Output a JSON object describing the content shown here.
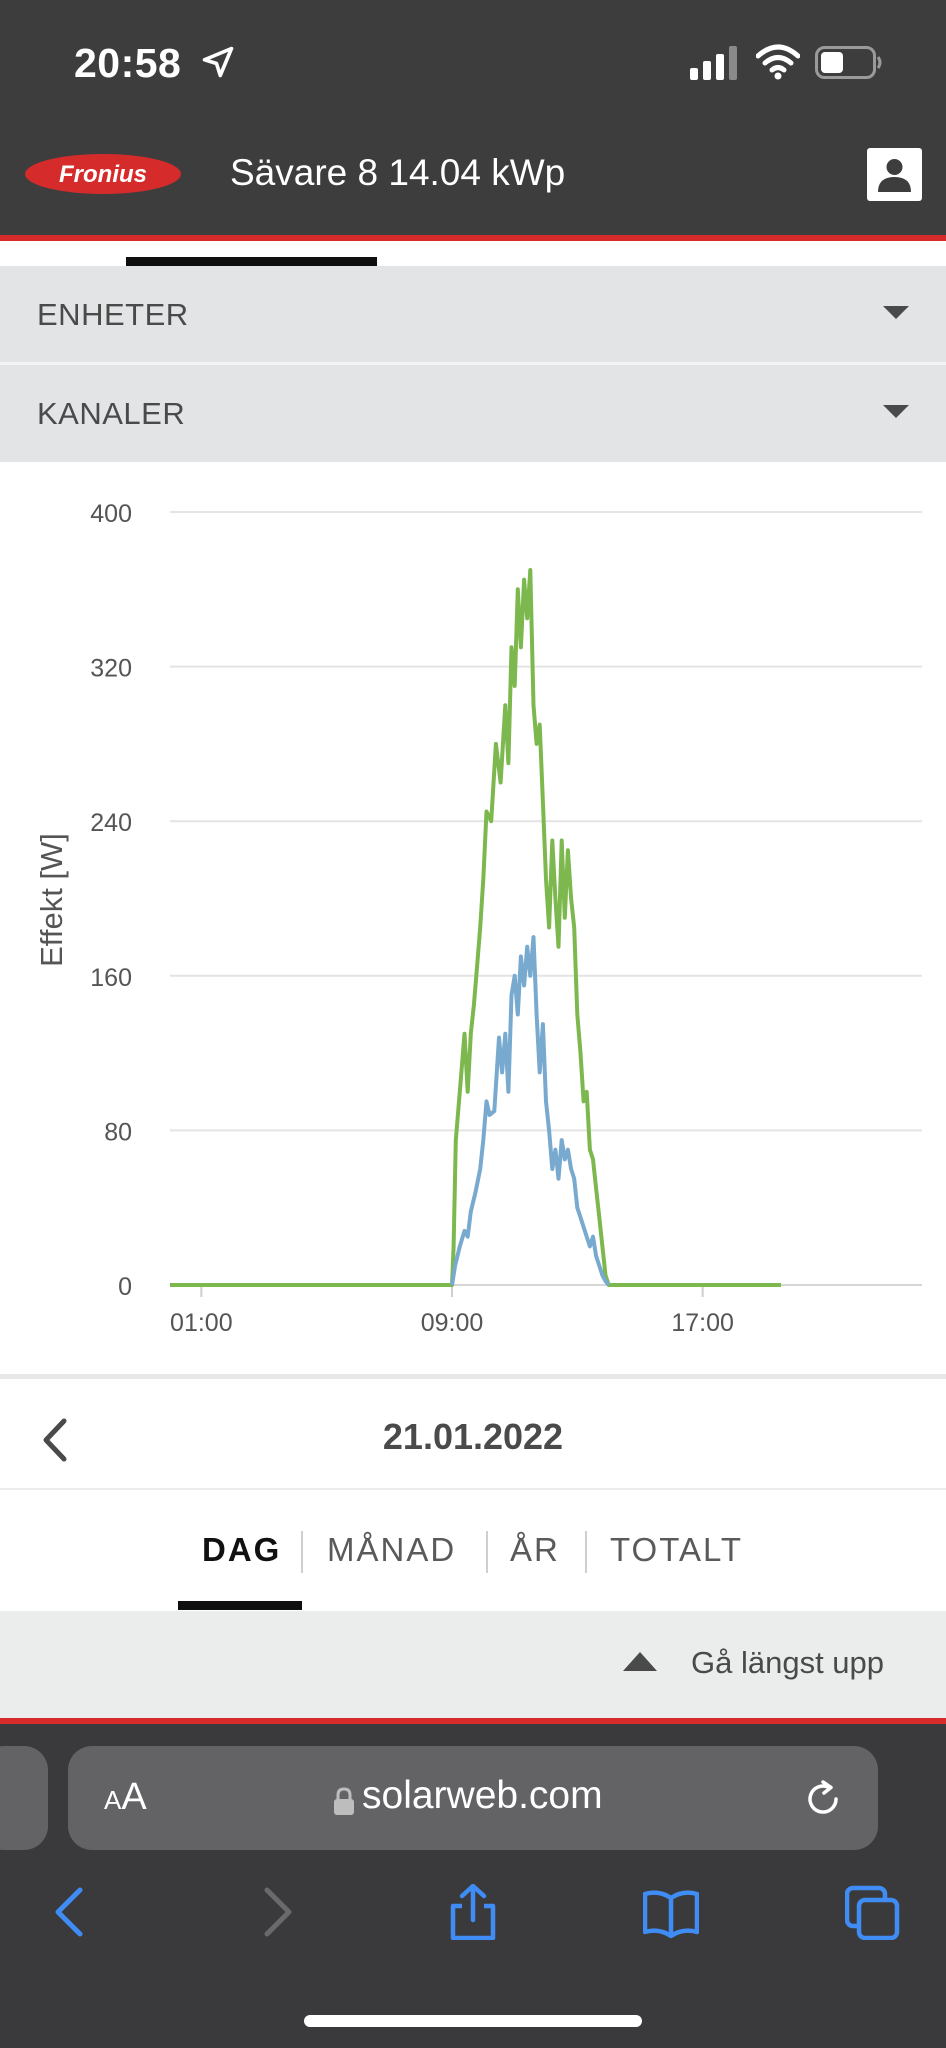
{
  "status_bar": {
    "time": "20:58"
  },
  "header": {
    "logo_text": "Fronius",
    "site_title": "Sävare 8 14.04 kWp"
  },
  "dropdowns": [
    {
      "label": "ENHETER"
    },
    {
      "label": "KANALER"
    }
  ],
  "chart_data": {
    "type": "line",
    "title": "",
    "ylabel": "Effekt [W]",
    "xlabel": "",
    "ylim": [
      0,
      400
    ],
    "yticks": [
      "0",
      "80",
      "160",
      "240",
      "320",
      "400"
    ],
    "xticks": [
      "01:00",
      "09:00",
      "17:00"
    ],
    "x_unit": "hours",
    "grid": true,
    "series": [
      {
        "color": "#7db84f",
        "x": [
          0,
          9.0,
          9.05,
          9.12,
          9.25,
          9.4,
          9.5,
          9.6,
          9.7,
          9.8,
          9.9,
          10.0,
          10.1,
          10.25,
          10.4,
          10.55,
          10.7,
          10.8,
          10.9,
          11.0,
          11.1,
          11.2,
          11.3,
          11.4,
          11.5,
          11.6,
          11.7,
          11.8,
          11.9,
          12.0,
          12.1,
          12.2,
          12.3,
          12.4,
          12.5,
          12.6,
          12.7,
          12.8,
          12.9,
          13.0,
          13.1,
          13.2,
          13.3,
          13.4,
          13.5,
          13.6,
          13.7,
          13.8,
          13.9,
          14.0,
          14.1,
          14.2,
          14.3,
          14.4,
          14.5,
          14.6,
          14.7,
          14.8,
          14.9,
          15.0,
          15.1,
          15.2,
          15.3,
          15.4,
          15.5,
          15.6,
          15.7,
          15.8,
          15.9,
          16.0,
          16.1,
          16.2,
          16.3,
          16.4,
          16.5,
          16.6,
          16.7,
          16.8,
          16.85,
          16.9,
          19.5
        ],
        "values": [
          0,
          0,
          20,
          75,
          100,
          130,
          100,
          130,
          145,
          165,
          185,
          210,
          245,
          240,
          280,
          260,
          300,
          270,
          330,
          310,
          360,
          330,
          365,
          345,
          370,
          300,
          280,
          290,
          250,
          210,
          185,
          230,
          200,
          175,
          230,
          190,
          225,
          200,
          185,
          140,
          120,
          95,
          100,
          70,
          65,
          50,
          35,
          20,
          5,
          0,
          0,
          0,
          0,
          0,
          0,
          0,
          0,
          0,
          0,
          0,
          0,
          0,
          0,
          0,
          0,
          0,
          0,
          0,
          0,
          0,
          0,
          0,
          0,
          0,
          0,
          0,
          0,
          0,
          0,
          0,
          0
        ]
      },
      {
        "color": "#78a9cf",
        "x": [
          9.0,
          9.1,
          9.25,
          9.4,
          9.5,
          9.6,
          9.75,
          9.9,
          10.0,
          10.1,
          10.2,
          10.35,
          10.5,
          10.6,
          10.7,
          10.8,
          10.9,
          11.0,
          11.1,
          11.2,
          11.3,
          11.4,
          11.5,
          11.6,
          11.7,
          11.8,
          11.9,
          12.0,
          12.1,
          12.2,
          12.3,
          12.4,
          12.5,
          12.6,
          12.7,
          12.8,
          12.9,
          13.0,
          13.1,
          13.2,
          13.3,
          13.4,
          13.5,
          13.6,
          13.7,
          13.8,
          13.9,
          14.0
        ],
        "values": [
          0,
          10,
          20,
          28,
          25,
          38,
          48,
          60,
          75,
          95,
          88,
          90,
          128,
          110,
          130,
          100,
          150,
          160,
          140,
          170,
          155,
          175,
          160,
          180,
          140,
          110,
          135,
          95,
          80,
          60,
          70,
          55,
          75,
          65,
          70,
          60,
          55,
          40,
          35,
          30,
          25,
          20,
          25,
          15,
          10,
          5,
          2,
          0
        ]
      }
    ]
  },
  "date_nav": {
    "date": "21.01.2022"
  },
  "tabs": [
    {
      "label": "DAG"
    },
    {
      "label": "MÅNAD"
    },
    {
      "label": "ÅR"
    },
    {
      "label": "TOTALT"
    }
  ],
  "back_to_top": {
    "label": "Gå längst upp"
  },
  "safari": {
    "aa_small": "A",
    "aa_large": "A",
    "url": "solarweb.com"
  },
  "colors": {
    "header_bg": "#3d3d3d",
    "brand_red": "#d52b2b",
    "series_green": "#7db84f",
    "series_blue": "#78a9cf"
  }
}
